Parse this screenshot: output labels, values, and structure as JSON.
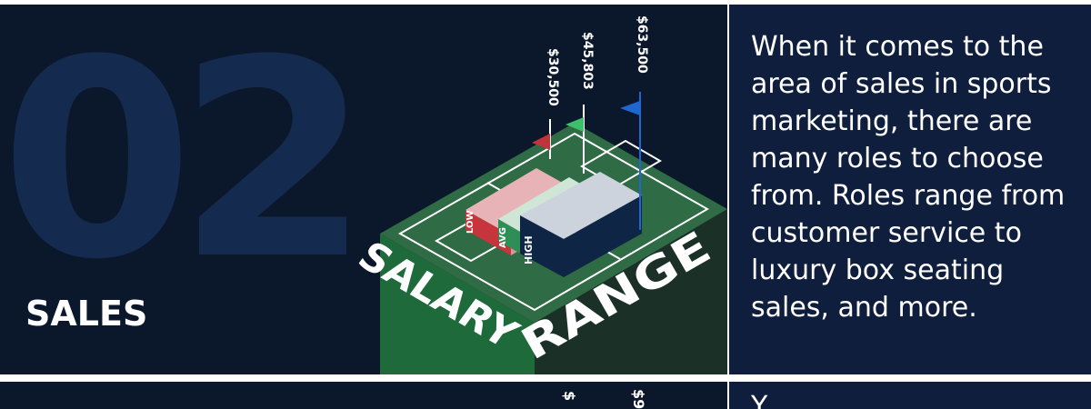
{
  "section": {
    "number": "02",
    "title": "SALES"
  },
  "graphic": {
    "word1": "SALARY",
    "word2": "RANGE",
    "salaries": [
      {
        "label": "$30,500",
        "flag_color": "#c0343c",
        "bar_color": "#e7b3b6",
        "side_color": "#c6353c",
        "bar_text": "LOW"
      },
      {
        "label": "$45,803",
        "flag_color": "#3ec06a",
        "bar_color": "#cfe6d6",
        "side_color": "#2e8f56",
        "bar_text": "AVG"
      },
      {
        "label": "$63,500",
        "flag_color": "#1f66d1",
        "bar_color": "#cdd3dd",
        "side_color": "#0f2545",
        "bar_text": "HIGH"
      }
    ],
    "field_color": "#2f6b45",
    "side_left_color": "#1e6a3b",
    "side_right_color": "#1b3026"
  },
  "description": "When it comes to the area of sales in sports marketing, there are many roles to choose from. Roles range from customer service to luxury box seating sales, and more.",
  "next_section": {
    "label_partial_1": "$",
    "label_partial_2": "$9",
    "text_partial": "Y"
  },
  "colors": {
    "panel_bg": "#0b172b",
    "text_panel_bg": "#0e1e3c",
    "big_number": "#142b4f"
  }
}
